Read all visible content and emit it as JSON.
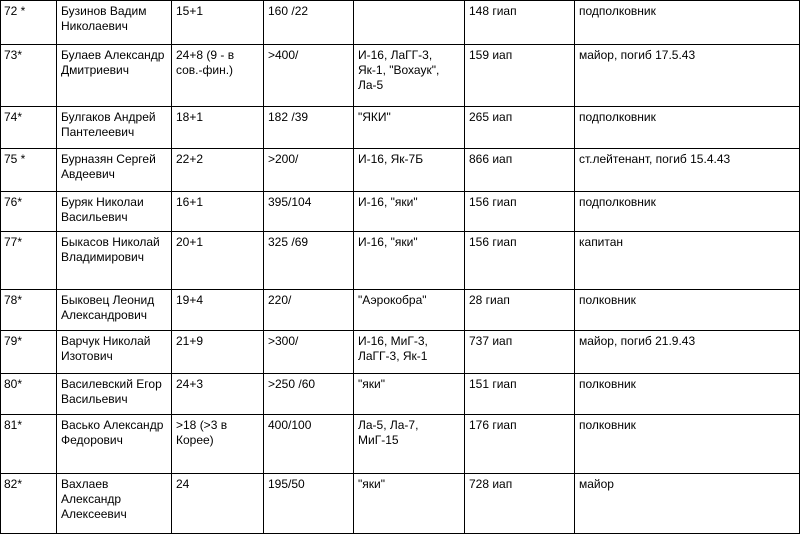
{
  "rows": [
    {
      "num": "72 *",
      "name": "Бузинов Вадим Николаевич",
      "sorties": "15+1",
      "battles": "160 /22",
      "aircraft": "",
      "regiment": "148 гиап",
      "rank": "подполковник"
    },
    {
      "num": "73*",
      "name": "Булаев Александр Дмитриевич",
      "sorties": "24+8 (9 - в сов.-фин.)",
      "battles": ">400/",
      "aircraft": "И-16, ЛаГГ-3, Як-1, \"Вохаук\", Ла-5",
      "regiment": "159 иап",
      "rank": "майор, погиб 17.5.43"
    },
    {
      "num": "74*",
      "name": "Булгаков Андрей Пантелеевич",
      "sorties": "18+1",
      "battles": "182 /39",
      "aircraft": "\"ЯКИ\"",
      "regiment": "265 иап",
      "rank": "подполковник"
    },
    {
      "num": "75 *",
      "name": "Бурназян Сергей Авдеевич",
      "sorties": "22+2",
      "battles": ">200/",
      "aircraft": "И-16, Як-7Б",
      "regiment": "866 иап",
      "rank": "ст.лейтенант, погиб 15.4.43"
    },
    {
      "num": "76*",
      "name": "Буряк Николаи Васильевич",
      "sorties": "16+1",
      "battles": "395/104",
      "aircraft": "И-16, \"яки\"",
      "regiment": "156 гиап",
      "rank": "подполковник"
    },
    {
      "num": "77*",
      "name": "Быкасов Николай Владимирович",
      "sorties": "20+1",
      "battles": "325 /69",
      "aircraft": "И-16, \"яки\"",
      "regiment": "156 гиап",
      "rank": "капитан"
    },
    {
      "num": "78*",
      "name": "Быковец Леонид Александрович",
      "sorties": "19+4",
      "battles": "220/",
      "aircraft": "\"Аэрокобра\"",
      "regiment": "28 гиап",
      "rank": "полковник"
    },
    {
      "num": "79*",
      "name": "Варчук Николай Изотович",
      "sorties": "21+9",
      "battles": ">300/",
      "aircraft": "И-16, МиГ-3, ЛаГГ-3, Як-1",
      "regiment": "737 иап",
      "rank": "майор, погиб 21.9.43"
    },
    {
      "num": "80*",
      "name": "Василевский Егор Васильевич",
      "sorties": "24+3",
      "battles": ">250 /60",
      "aircraft": "\"яки\"",
      "regiment": "151 гиап",
      "rank": "полковник"
    },
    {
      "num": "81*",
      "name": "Васько Александр Федорович",
      "sorties": ">18 (>3 в Корее)",
      "battles": "400/100",
      "aircraft": "Ла-5, Ла-7, МиГ-15",
      "regiment": "176 гиап",
      "rank": "полковник"
    },
    {
      "num": "82*",
      "name": "Вахлаев Александр Алексеевич",
      "sorties": "24",
      "battles": "195/50",
      "aircraft": "\"яки\"",
      "regiment": "728 иап",
      "rank": "майор"
    }
  ]
}
